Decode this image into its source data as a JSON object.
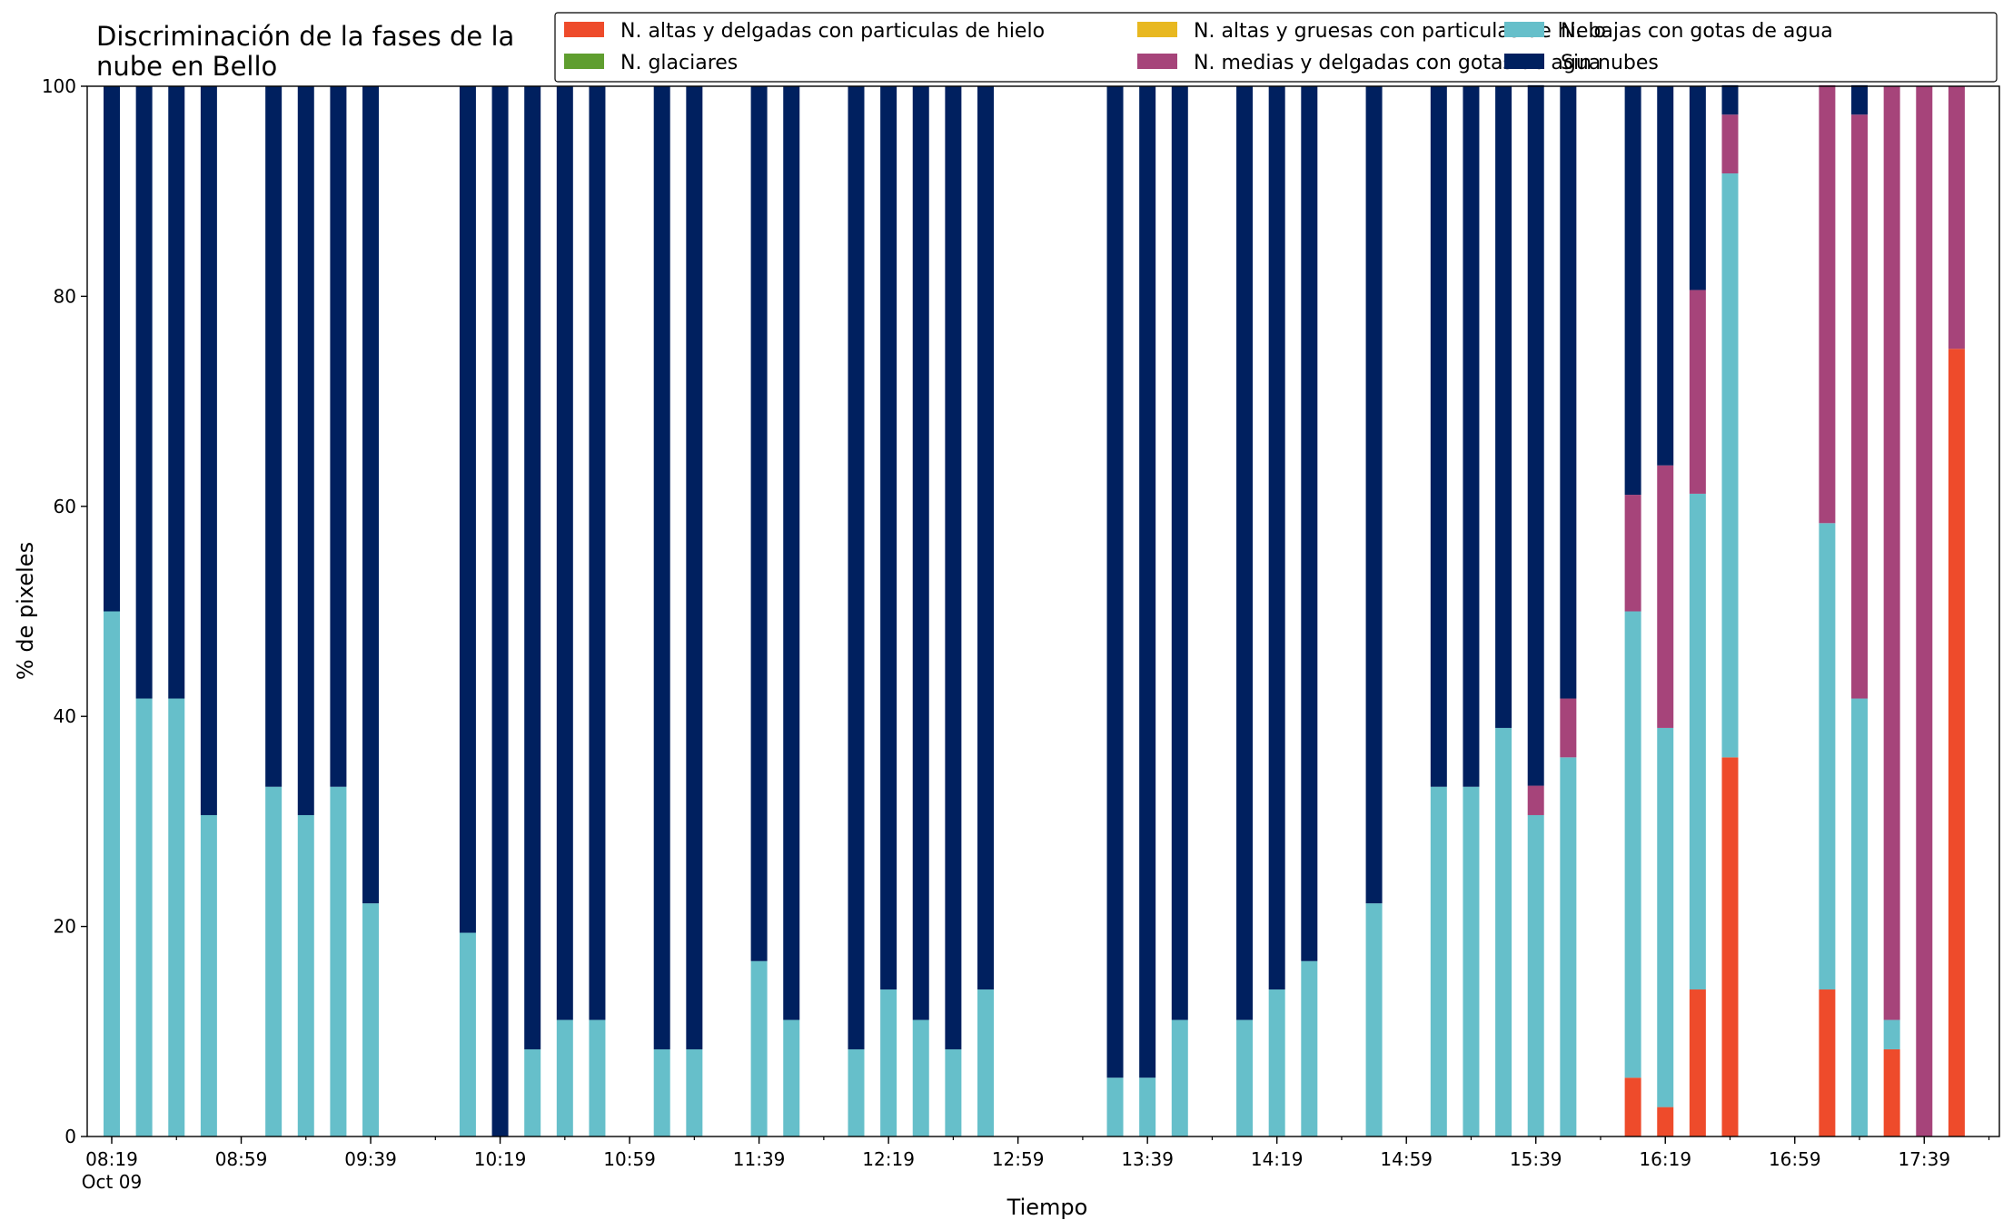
{
  "chart_data": {
    "type": "bar",
    "stacked": true,
    "title_lines": [
      "Discriminación de la fases de la",
      "nube en Bello"
    ],
    "xlabel": "Tiempo",
    "ylabel": "% de pixeles",
    "ylim": [
      0,
      100
    ],
    "yticks": [
      "0",
      "20",
      "40",
      "60",
      "80",
      "100"
    ],
    "xticks": [
      "08:19",
      "08:59",
      "09:39",
      "10:19",
      "10:59",
      "11:39",
      "12:19",
      "12:59",
      "13:39",
      "14:19",
      "14:59",
      "15:39",
      "16:19",
      "16:59",
      "17:39"
    ],
    "x_date_label": "Oct 09",
    "x_start": "08:19",
    "slot_minutes": 10,
    "minor_tick_minutes": 20,
    "grid": false,
    "legend_position": "top-right",
    "times": [
      "08:19",
      "08:29",
      "08:39",
      "08:49",
      "09:09",
      "09:19",
      "09:29",
      "09:39",
      "10:09",
      "10:19",
      "10:29",
      "10:39",
      "10:49",
      "11:09",
      "11:19",
      "11:39",
      "11:49",
      "12:09",
      "12:19",
      "12:29",
      "12:39",
      "12:49",
      "13:29",
      "13:39",
      "13:49",
      "14:09",
      "14:19",
      "14:29",
      "14:49",
      "15:09",
      "15:19",
      "15:29",
      "15:39",
      "15:49",
      "16:09",
      "16:19",
      "16:29",
      "16:39",
      "17:09",
      "17:19",
      "17:29",
      "17:39",
      "17:49"
    ],
    "series": [
      {
        "name": "N. altas y delgadas con particulas de hielo",
        "color": "#ee4b2b",
        "values": [
          0,
          0,
          0,
          0,
          0,
          0,
          0,
          0,
          0,
          0,
          0,
          0,
          0,
          0,
          0,
          0,
          0,
          0,
          0,
          0,
          0,
          0,
          0,
          0,
          0,
          0,
          0,
          0,
          0,
          0,
          0,
          0,
          0,
          0,
          5.6,
          2.8,
          14,
          36.1,
          14,
          0,
          8.3,
          0,
          75
        ]
      },
      {
        "name": "N. altas y gruesas con particulas de hielo",
        "color": "#e8b820",
        "values": [
          0,
          0,
          0,
          0,
          0,
          0,
          0,
          0,
          0,
          0,
          0,
          0,
          0,
          0,
          0,
          0,
          0,
          0,
          0,
          0,
          0,
          0,
          0,
          0,
          0,
          0,
          0,
          0,
          0,
          0,
          0,
          0,
          0,
          0,
          0,
          0,
          0,
          0,
          0,
          0,
          0,
          0,
          0
        ]
      },
      {
        "name": "N. bajas con gotas de agua",
        "color": "#66bfca",
        "values": [
          50,
          41.7,
          41.7,
          30.6,
          33.3,
          30.6,
          33.3,
          22.2,
          19.4,
          0,
          8.3,
          11.1,
          11.1,
          8.3,
          8.3,
          16.7,
          11.1,
          8.3,
          14,
          11.1,
          8.3,
          14,
          5.6,
          5.6,
          11.1,
          11.1,
          14,
          16.7,
          22.2,
          33.3,
          33.3,
          38.9,
          30.6,
          36.1,
          44.4,
          36.1,
          47.2,
          55.6,
          44.4,
          41.7,
          2.8,
          0,
          0
        ]
      },
      {
        "name": "N. glaciares",
        "color": "#5f9e2f",
        "values": [
          0,
          0,
          0,
          0,
          0,
          0,
          0,
          0,
          0,
          0,
          0,
          0,
          0,
          0,
          0,
          0,
          0,
          0,
          0,
          0,
          0,
          0,
          0,
          0,
          0,
          0,
          0,
          0,
          0,
          0,
          0,
          0,
          0,
          0,
          0,
          0,
          0,
          0,
          0,
          0,
          0,
          0,
          0
        ]
      },
      {
        "name": "N. medias y delgadas con gotas de agua",
        "color": "#a6447a",
        "values": [
          0,
          0,
          0,
          0,
          0,
          0,
          0,
          0,
          0,
          0,
          0,
          0,
          0,
          0,
          0,
          0,
          0,
          0,
          0,
          0,
          0,
          0,
          0,
          0,
          0,
          0,
          0,
          0,
          0,
          0,
          0,
          0,
          2.8,
          5.6,
          11.1,
          25,
          19.4,
          5.6,
          41.7,
          55.6,
          88.9,
          100,
          25
        ]
      },
      {
        "name": "Sin nubes",
        "color": "#00205f",
        "values": [
          50,
          58.3,
          58.3,
          69.4,
          66.7,
          69.4,
          66.7,
          77.8,
          80.6,
          100,
          91.7,
          88.9,
          88.9,
          91.7,
          91.7,
          83.3,
          88.9,
          91.7,
          86,
          88.9,
          91.7,
          86,
          94.4,
          94.4,
          88.9,
          88.9,
          86,
          83.3,
          77.8,
          66.7,
          66.7,
          61.1,
          66.7,
          58.3,
          38.9,
          36.1,
          19.4,
          2.8,
          0,
          2.8,
          0,
          0,
          0
        ]
      }
    ]
  }
}
